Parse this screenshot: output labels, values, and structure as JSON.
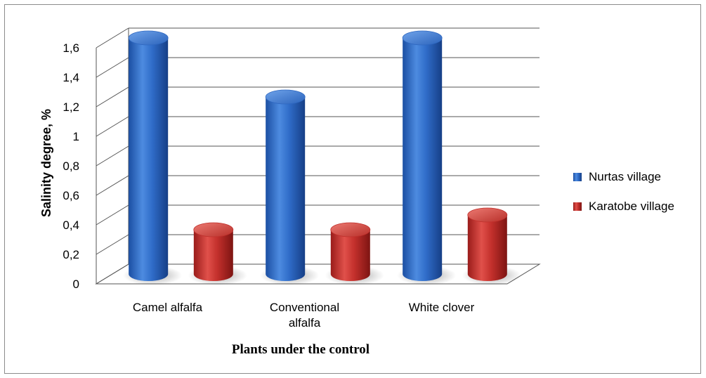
{
  "chart_data": {
    "type": "bar",
    "style": "3d-cylinder",
    "categories": [
      [
        "Camel alfalfa"
      ],
      [
        "Conventional",
        "alfalfa"
      ],
      [
        "White clover"
      ]
    ],
    "series": [
      {
        "name": "Nurtas village",
        "values": [
          1.6,
          1.2,
          1.6
        ],
        "color": "#2e67c0"
      },
      {
        "name": "Karatobe village",
        "values": [
          0.3,
          0.3,
          0.4
        ],
        "color": "#c0302c"
      }
    ],
    "xlabel": "Plants under the control",
    "ylabel": "Salinity degree,  %",
    "ylim": [
      0,
      1.6
    ],
    "yticks": [
      "0",
      "0,2",
      "0,4",
      "0,6",
      "0,8",
      "1",
      "1,2",
      "1,4",
      "1,6"
    ],
    "grid": true,
    "legend_position": "right"
  }
}
